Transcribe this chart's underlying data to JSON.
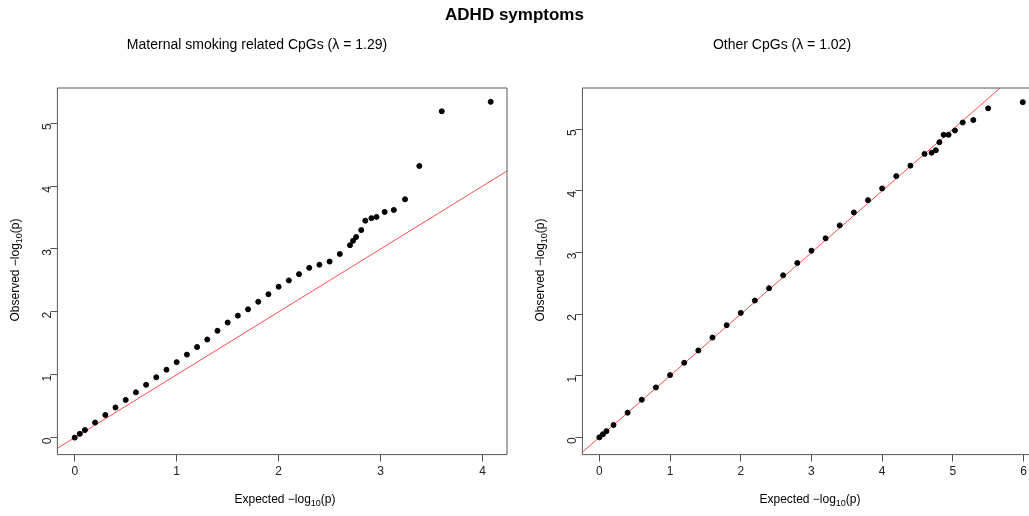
{
  "chart_data": [
    {
      "type": "scatter",
      "title": "ADHD symptoms",
      "subtitle": "Maternal smoking related CpGs (λ = 1.29)",
      "xlabel": "Expected  −log$_{10}$(p)",
      "ylabel": "Observed  −log$_{10}$(p)",
      "xlim": [
        -0.17,
        4.24
      ],
      "ylim": [
        -0.27,
        5.56
      ],
      "xticks": [
        0,
        1,
        2,
        3,
        4
      ],
      "yticks": [
        0,
        1,
        2,
        3,
        4,
        5
      ],
      "series": [
        {
          "type": "scatter",
          "marker": "circle",
          "color": "#000000",
          "x": [
            0,
            0.05,
            0.1,
            0.2,
            0.3,
            0.4,
            0.5,
            0.6,
            0.7,
            0.8,
            0.9,
            1.0,
            1.1,
            1.2,
            1.3,
            1.4,
            1.5,
            1.6,
            1.7,
            1.8,
            1.9,
            2.0,
            2.1,
            2.2,
            2.3,
            2.4,
            2.5,
            2.6,
            2.7,
            2.73,
            2.76,
            2.81,
            2.85,
            2.91,
            2.96,
            3.04,
            3.13,
            3.24,
            3.38,
            3.6,
            4.08
          ],
          "values": [
            0,
            0.06,
            0.12,
            0.24,
            0.36,
            0.48,
            0.6,
            0.72,
            0.84,
            0.96,
            1.08,
            1.2,
            1.32,
            1.44,
            1.56,
            1.7,
            1.83,
            1.94,
            2.04,
            2.16,
            2.28,
            2.4,
            2.5,
            2.6,
            2.7,
            2.75,
            2.8,
            2.92,
            3.06,
            3.13,
            3.19,
            3.3,
            3.45,
            3.49,
            3.51,
            3.59,
            3.62,
            3.79,
            4.32,
            5.19,
            5.34
          ]
        },
        {
          "type": "line",
          "marker": "none",
          "color": "#ff4d4d",
          "x": [
            -0.17,
            4.24
          ],
          "values": [
            -0.17,
            4.24
          ]
        }
      ]
    },
    {
      "type": "scatter",
      "subtitle": "Other CpGs (λ = 1.02)",
      "xlabel": "Expected  −log$_{10}$(p)",
      "ylabel": "Observed  −log$_{10}$(p)",
      "xlim": [
        -0.24,
        6.12
      ],
      "ylim": [
        -0.28,
        5.67
      ],
      "xticks": [
        0,
        1,
        2,
        3,
        4,
        5,
        6
      ],
      "yticks": [
        0,
        1,
        2,
        3,
        4,
        5
      ],
      "series": [
        {
          "type": "scatter",
          "marker": "circle",
          "color": "#000000",
          "x": [
            0,
            0.05,
            0.1,
            0.2,
            0.4,
            0.6,
            0.8,
            1.0,
            1.2,
            1.4,
            1.6,
            1.8,
            2.0,
            2.2,
            2.4,
            2.6,
            2.8,
            3.0,
            3.2,
            3.4,
            3.6,
            3.8,
            4.0,
            4.2,
            4.4,
            4.6,
            4.7,
            4.76,
            4.81,
            4.87,
            4.94,
            5.03,
            5.14,
            5.29,
            5.5,
            5.99
          ],
          "values": [
            0,
            0.05,
            0.1,
            0.2,
            0.4,
            0.61,
            0.81,
            1.01,
            1.21,
            1.41,
            1.62,
            1.82,
            2.02,
            2.22,
            2.42,
            2.63,
            2.83,
            3.03,
            3.23,
            3.44,
            3.65,
            3.85,
            4.04,
            4.24,
            4.41,
            4.6,
            4.62,
            4.66,
            4.79,
            4.91,
            4.91,
            4.98,
            5.11,
            5.15,
            5.34,
            5.44
          ]
        },
        {
          "type": "line",
          "marker": "none",
          "color": "#ff4d4d",
          "x": [
            -0.24,
            5.67
          ],
          "values": [
            -0.24,
            5.67
          ]
        }
      ]
    }
  ]
}
